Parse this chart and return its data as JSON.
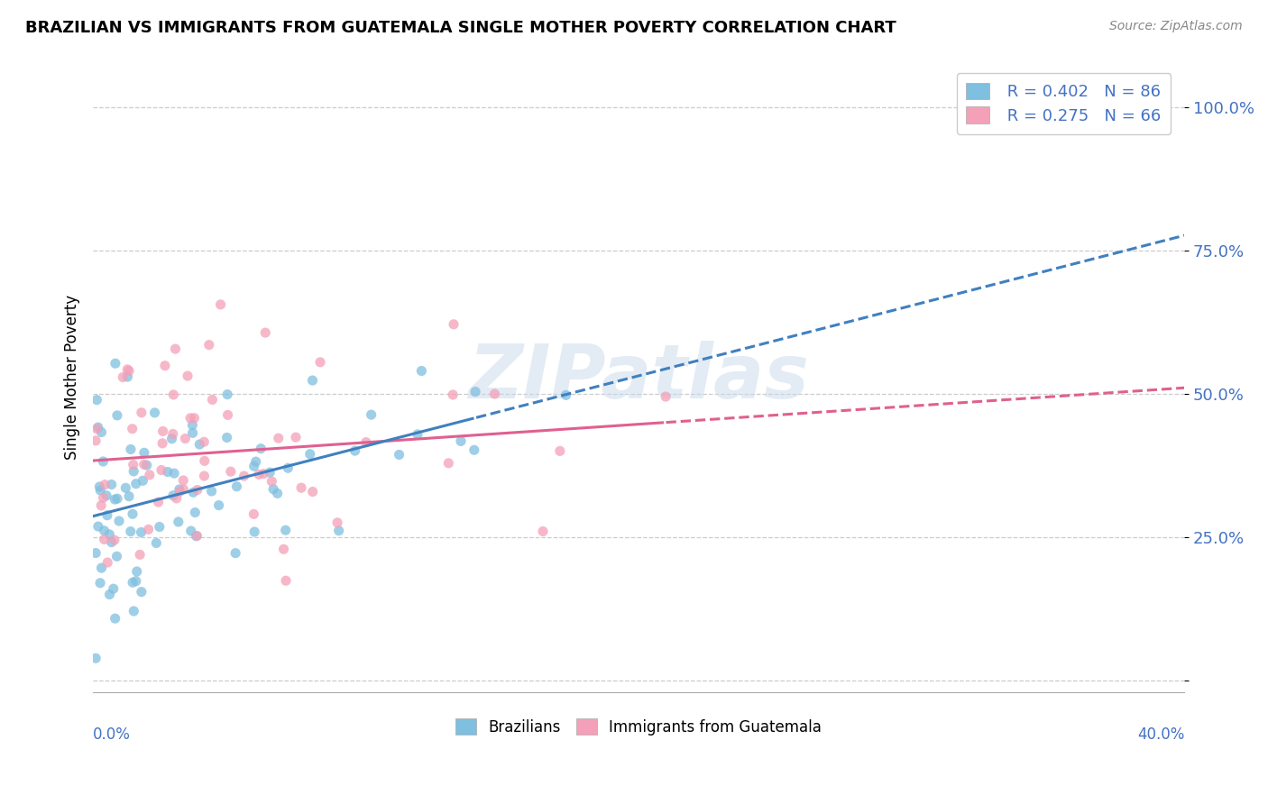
{
  "title": "BRAZILIAN VS IMMIGRANTS FROM GUATEMALA SINGLE MOTHER POVERTY CORRELATION CHART",
  "source": "Source: ZipAtlas.com",
  "ylabel": "Single Mother Poverty",
  "ytick_vals": [
    0.0,
    0.25,
    0.5,
    0.75,
    1.0
  ],
  "ytick_labels": [
    "",
    "25.0%",
    "50.0%",
    "75.0%",
    "100.0%"
  ],
  "xlim": [
    0.0,
    0.4
  ],
  "ylim": [
    -0.02,
    1.08
  ],
  "watermark": "ZIPatlas",
  "legend_r1": "R = 0.402",
  "legend_n1": "N = 86",
  "legend_r2": "R = 0.275",
  "legend_n2": "N = 66",
  "blue_color": "#7fbfdf",
  "pink_color": "#f4a0b8",
  "trend_blue": "#4080c0",
  "trend_pink": "#e06090",
  "background_color": "#ffffff",
  "grid_color": "#cccccc",
  "label_color": "#4472C4",
  "blue_seed": 42,
  "pink_seed": 7,
  "n_blue": 86,
  "n_pink": 66,
  "blue_intercept": 0.3,
  "blue_slope": 0.87,
  "pink_intercept": 0.35,
  "pink_slope": 0.75
}
